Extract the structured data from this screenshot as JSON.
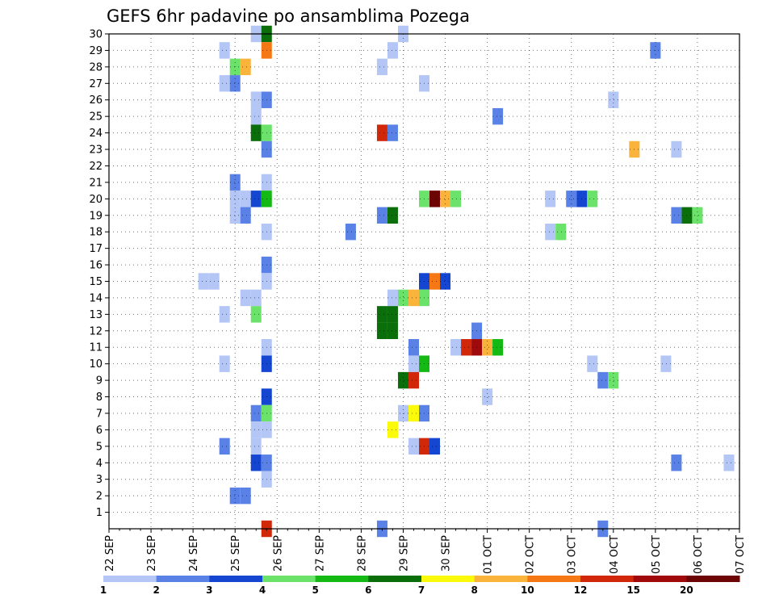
{
  "chart_data": {
    "type": "heatmap",
    "title": "GEFS 6hr padavine po ansamblima Pozega",
    "xlabel": "",
    "ylabel": "",
    "x_tick_labels": [
      "22 SEP",
      "23 SEP",
      "24 SEP",
      "25 SEP",
      "26 SEP",
      "27 SEP",
      "28 SEP",
      "29 SEP",
      "30 SEP",
      "01 OCT",
      "02 OCT",
      "03 OCT",
      "04 OCT",
      "05 OCT",
      "06 OCT",
      "07 OCT"
    ],
    "x_unit": "6-hour steps after 22 SEP 00Z",
    "y_tick_labels": [
      "1",
      "2",
      "3",
      "4",
      "5",
      "6",
      "7",
      "8",
      "9",
      "10",
      "11",
      "12",
      "13",
      "14",
      "15",
      "16",
      "17",
      "18",
      "19",
      "20",
      "21",
      "22",
      "23",
      "24",
      "25",
      "26",
      "27",
      "28",
      "29",
      "30"
    ],
    "xlim": [
      0,
      60
    ],
    "ylim": [
      0,
      30
    ],
    "grid": true,
    "legend_position": "bottom colorbar",
    "legend": {
      "labels": [
        "1",
        "2",
        "3",
        "4",
        "5",
        "6",
        "7",
        "8",
        "10",
        "12",
        "15",
        "20"
      ],
      "colors": [
        "#b3c6f5",
        "#5a82e6",
        "#1446d2",
        "#6be36b",
        "#14b914",
        "#0a6e0a",
        "#fafa0a",
        "#fab43c",
        "#f57814",
        "#d2280a",
        "#a00a0a",
        "#6e0505"
      ]
    },
    "cells": [
      {
        "step": 14,
        "member": 30,
        "color": "#b3c6f5"
      },
      {
        "step": 15,
        "member": 30,
        "color": "#0a6e0a"
      },
      {
        "step": 28,
        "member": 30,
        "color": "#b3c6f5"
      },
      {
        "step": 11,
        "member": 29,
        "color": "#b3c6f5"
      },
      {
        "step": 15,
        "member": 29,
        "color": "#f57814"
      },
      {
        "step": 27,
        "member": 29,
        "color": "#b3c6f5"
      },
      {
        "step": 52,
        "member": 29,
        "color": "#5a82e6"
      },
      {
        "step": 12,
        "member": 28,
        "color": "#6be36b"
      },
      {
        "step": 13,
        "member": 28,
        "color": "#fab43c"
      },
      {
        "step": 26,
        "member": 28,
        "color": "#b3c6f5"
      },
      {
        "step": 11,
        "member": 27,
        "color": "#b3c6f5"
      },
      {
        "step": 12,
        "member": 27,
        "color": "#5a82e6"
      },
      {
        "step": 30,
        "member": 27,
        "color": "#b3c6f5"
      },
      {
        "step": 14,
        "member": 26,
        "color": "#b3c6f5"
      },
      {
        "step": 15,
        "member": 26,
        "color": "#5a82e6"
      },
      {
        "step": 48,
        "member": 26,
        "color": "#b3c6f5"
      },
      {
        "step": 14,
        "member": 25,
        "color": "#b3c6f5"
      },
      {
        "step": 37,
        "member": 25,
        "color": "#5a82e6"
      },
      {
        "step": 14,
        "member": 24,
        "color": "#0a6e0a"
      },
      {
        "step": 15,
        "member": 24,
        "color": "#6be36b"
      },
      {
        "step": 26,
        "member": 24,
        "color": "#d2280a"
      },
      {
        "step": 27,
        "member": 24,
        "color": "#5a82e6"
      },
      {
        "step": 15,
        "member": 23,
        "color": "#5a82e6"
      },
      {
        "step": 50,
        "member": 23,
        "color": "#fab43c"
      },
      {
        "step": 54,
        "member": 23,
        "color": "#b3c6f5"
      },
      {
        "step": 12,
        "member": 21,
        "color": "#5a82e6"
      },
      {
        "step": 15,
        "member": 21,
        "color": "#b3c6f5"
      },
      {
        "step": 12,
        "member": 20,
        "color": "#b3c6f5"
      },
      {
        "step": 13,
        "member": 20,
        "color": "#b3c6f5"
      },
      {
        "step": 14,
        "member": 20,
        "color": "#1446d2"
      },
      {
        "step": 15,
        "member": 20,
        "color": "#14b914"
      },
      {
        "step": 30,
        "member": 20,
        "color": "#6be36b"
      },
      {
        "step": 31,
        "member": 20,
        "color": "#6e0505"
      },
      {
        "step": 32,
        "member": 20,
        "color": "#fab43c"
      },
      {
        "step": 33,
        "member": 20,
        "color": "#6be36b"
      },
      {
        "step": 42,
        "member": 20,
        "color": "#b3c6f5"
      },
      {
        "step": 44,
        "member": 20,
        "color": "#5a82e6"
      },
      {
        "step": 45,
        "member": 20,
        "color": "#1446d2"
      },
      {
        "step": 46,
        "member": 20,
        "color": "#6be36b"
      },
      {
        "step": 12,
        "member": 19,
        "color": "#b3c6f5"
      },
      {
        "step": 13,
        "member": 19,
        "color": "#5a82e6"
      },
      {
        "step": 26,
        "member": 19,
        "color": "#5a82e6"
      },
      {
        "step": 27,
        "member": 19,
        "color": "#0a6e0a"
      },
      {
        "step": 54,
        "member": 19,
        "color": "#5a82e6"
      },
      {
        "step": 55,
        "member": 19,
        "color": "#0a6e0a"
      },
      {
        "step": 56,
        "member": 19,
        "color": "#6be36b"
      },
      {
        "step": 15,
        "member": 18,
        "color": "#b3c6f5"
      },
      {
        "step": 23,
        "member": 18,
        "color": "#5a82e6"
      },
      {
        "step": 42,
        "member": 18,
        "color": "#b3c6f5"
      },
      {
        "step": 43,
        "member": 18,
        "color": "#6be36b"
      },
      {
        "step": 15,
        "member": 16,
        "color": "#5a82e6"
      },
      {
        "step": 9,
        "member": 15,
        "color": "#b3c6f5"
      },
      {
        "step": 10,
        "member": 15,
        "color": "#b3c6f5"
      },
      {
        "step": 15,
        "member": 15,
        "color": "#b3c6f5"
      },
      {
        "step": 30,
        "member": 15,
        "color": "#1446d2"
      },
      {
        "step": 31,
        "member": 15,
        "color": "#f57814"
      },
      {
        "step": 32,
        "member": 15,
        "color": "#1446d2"
      },
      {
        "step": 13,
        "member": 14,
        "color": "#b3c6f5"
      },
      {
        "step": 14,
        "member": 14,
        "color": "#b3c6f5"
      },
      {
        "step": 27,
        "member": 14,
        "color": "#b3c6f5"
      },
      {
        "step": 28,
        "member": 14,
        "color": "#6be36b"
      },
      {
        "step": 29,
        "member": 14,
        "color": "#fab43c"
      },
      {
        "step": 30,
        "member": 14,
        "color": "#6be36b"
      },
      {
        "step": 11,
        "member": 13,
        "color": "#b3c6f5"
      },
      {
        "step": 14,
        "member": 13,
        "color": "#6be36b"
      },
      {
        "step": 26,
        "member": 13,
        "color": "#0a6e0a"
      },
      {
        "step": 27,
        "member": 13,
        "color": "#0a6e0a"
      },
      {
        "step": 26,
        "member": 12,
        "color": "#0a6e0a"
      },
      {
        "step": 27,
        "member": 12,
        "color": "#0a6e0a"
      },
      {
        "step": 35,
        "member": 12,
        "color": "#5a82e6"
      },
      {
        "step": 15,
        "member": 11,
        "color": "#b3c6f5"
      },
      {
        "step": 29,
        "member": 11,
        "color": "#5a82e6"
      },
      {
        "step": 33,
        "member": 11,
        "color": "#b3c6f5"
      },
      {
        "step": 34,
        "member": 11,
        "color": "#d2280a"
      },
      {
        "step": 35,
        "member": 11,
        "color": "#a00a0a"
      },
      {
        "step": 36,
        "member": 11,
        "color": "#fab43c"
      },
      {
        "step": 37,
        "member": 11,
        "color": "#14b914"
      },
      {
        "step": 11,
        "member": 10,
        "color": "#b3c6f5"
      },
      {
        "step": 15,
        "member": 10,
        "color": "#1446d2"
      },
      {
        "step": 29,
        "member": 10,
        "color": "#b3c6f5"
      },
      {
        "step": 30,
        "member": 10,
        "color": "#14b914"
      },
      {
        "step": 46,
        "member": 10,
        "color": "#b3c6f5"
      },
      {
        "step": 53,
        "member": 10,
        "color": "#b3c6f5"
      },
      {
        "step": 28,
        "member": 9,
        "color": "#0a6e0a"
      },
      {
        "step": 29,
        "member": 9,
        "color": "#d2280a"
      },
      {
        "step": 47,
        "member": 9,
        "color": "#5a82e6"
      },
      {
        "step": 48,
        "member": 9,
        "color": "#6be36b"
      },
      {
        "step": 15,
        "member": 8,
        "color": "#1446d2"
      },
      {
        "step": 36,
        "member": 8,
        "color": "#b3c6f5"
      },
      {
        "step": 14,
        "member": 7,
        "color": "#5a82e6"
      },
      {
        "step": 15,
        "member": 7,
        "color": "#6be36b"
      },
      {
        "step": 28,
        "member": 7,
        "color": "#b3c6f5"
      },
      {
        "step": 29,
        "member": 7,
        "color": "#fafa0a"
      },
      {
        "step": 30,
        "member": 7,
        "color": "#5a82e6"
      },
      {
        "step": 14,
        "member": 6,
        "color": "#b3c6f5"
      },
      {
        "step": 15,
        "member": 6,
        "color": "#b3c6f5"
      },
      {
        "step": 27,
        "member": 6,
        "color": "#fafa0a"
      },
      {
        "step": 11,
        "member": 5,
        "color": "#5a82e6"
      },
      {
        "step": 14,
        "member": 5,
        "color": "#b3c6f5"
      },
      {
        "step": 29,
        "member": 5,
        "color": "#b3c6f5"
      },
      {
        "step": 30,
        "member": 5,
        "color": "#d2280a"
      },
      {
        "step": 31,
        "member": 5,
        "color": "#1446d2"
      },
      {
        "step": 14,
        "member": 4,
        "color": "#1446d2"
      },
      {
        "step": 15,
        "member": 4,
        "color": "#5a82e6"
      },
      {
        "step": 54,
        "member": 4,
        "color": "#5a82e6"
      },
      {
        "step": 59,
        "member": 4,
        "color": "#b3c6f5"
      },
      {
        "step": 15,
        "member": 3,
        "color": "#b3c6f5"
      },
      {
        "step": 12,
        "member": 2,
        "color": "#5a82e6"
      },
      {
        "step": 13,
        "member": 2,
        "color": "#5a82e6"
      },
      {
        "step": 15,
        "member": 0,
        "color": "#d2280a"
      },
      {
        "step": 26,
        "member": 0,
        "color": "#5a82e6"
      },
      {
        "step": 47,
        "member": 0,
        "color": "#5a82e6"
      }
    ]
  }
}
